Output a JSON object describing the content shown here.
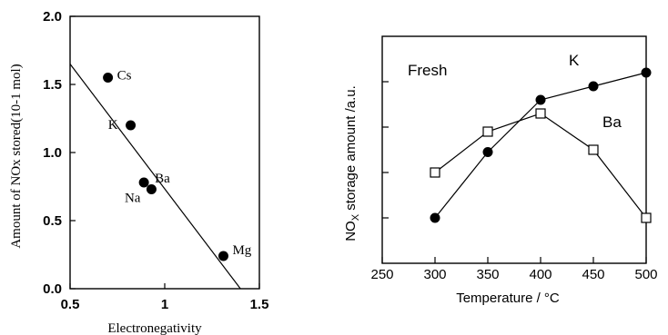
{
  "chart_data": [
    {
      "type": "scatter",
      "xlabel": "Electronegativity",
      "ylabel": "Amount of NOx stored(10-1 mol)",
      "xlim": [
        0.5,
        1.5
      ],
      "ylim": [
        0.0,
        2.0
      ],
      "x_ticks": [
        "0.5",
        "1",
        "1.5"
      ],
      "y_ticks": [
        "0.0",
        "0.5",
        "1.0",
        "1.5",
        "2.0"
      ],
      "points": [
        {
          "label": "Cs",
          "x": 0.7,
          "y": 1.55
        },
        {
          "label": "K",
          "x": 0.82,
          "y": 1.2
        },
        {
          "label": "Na",
          "x": 0.93,
          "y": 0.73
        },
        {
          "label": "Ba",
          "x": 0.89,
          "y": 0.78
        },
        {
          "label": "Mg",
          "x": 1.31,
          "y": 0.24
        }
      ],
      "fit_line": {
        "x": [
          0.5,
          1.4
        ],
        "y": [
          1.65,
          0.0
        ]
      },
      "grid": false
    },
    {
      "type": "line",
      "title": "Fresh",
      "xlabel": "Temperature / °C",
      "ylabel_main": "NO",
      "ylabel_sub": "X",
      "ylabel_rest": " storage amount /a.u.",
      "xlim": [
        250,
        500
      ],
      "ylim": [
        0,
        5
      ],
      "x_ticks": [
        "250",
        "300",
        "350",
        "400",
        "450",
        "500"
      ],
      "x": [
        300,
        350,
        400,
        450,
        500
      ],
      "series": [
        {
          "name": "K",
          "marker": "filled-circle",
          "values": [
            1.0,
            2.45,
            3.6,
            3.9,
            4.2
          ]
        },
        {
          "name": "Ba",
          "marker": "open-square",
          "values": [
            2.0,
            2.9,
            3.3,
            2.5,
            1.0
          ]
        }
      ],
      "grid": false
    }
  ]
}
